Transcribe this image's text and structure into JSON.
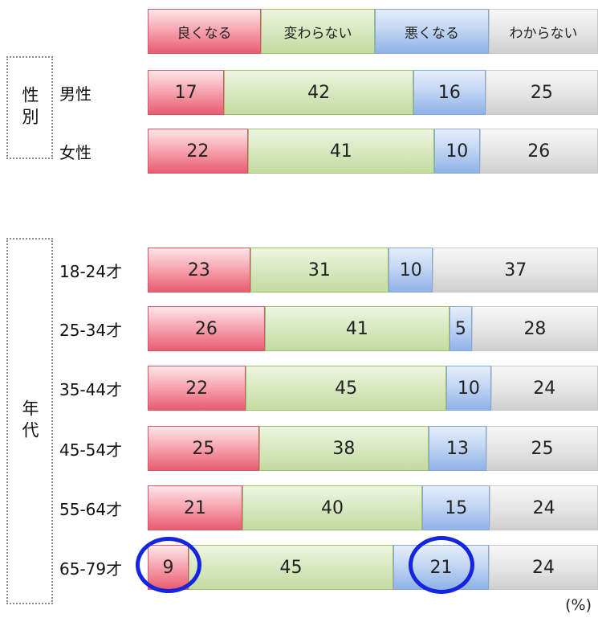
{
  "chart_data": {
    "type": "bar",
    "orientation": "horizontal-stacked-100",
    "legend": [
      "良くなる",
      "変わらない",
      "悪くなる",
      "わからない"
    ],
    "colors": [
      "#f0a4b0",
      "#d3e6b8",
      "#b9d0f2",
      "#dcdcdc"
    ],
    "unit": "(%)",
    "groups": [
      {
        "name": "性別",
        "rows": [
          {
            "label": "男性",
            "values": [
              17,
              42,
              16,
              25
            ]
          },
          {
            "label": "女性",
            "values": [
              22,
              41,
              10,
              26
            ]
          }
        ]
      },
      {
        "name": "年代",
        "rows": [
          {
            "label": "18-24才",
            "values": [
              23,
              31,
              10,
              37
            ]
          },
          {
            "label": "25-34才",
            "values": [
              26,
              41,
              5,
              28
            ]
          },
          {
            "label": "35-44才",
            "values": [
              22,
              45,
              10,
              24
            ]
          },
          {
            "label": "45-54才",
            "values": [
              25,
              38,
              13,
              25
            ]
          },
          {
            "label": "55-64才",
            "values": [
              21,
              40,
              15,
              24
            ]
          },
          {
            "label": "65-79才",
            "values": [
              9,
              45,
              21,
              24
            ]
          }
        ]
      }
    ],
    "highlights": [
      {
        "row": "65-79才",
        "category": "良くなる",
        "value": 9
      },
      {
        "row": "65-79才",
        "category": "悪くなる",
        "value": 21
      }
    ]
  }
}
